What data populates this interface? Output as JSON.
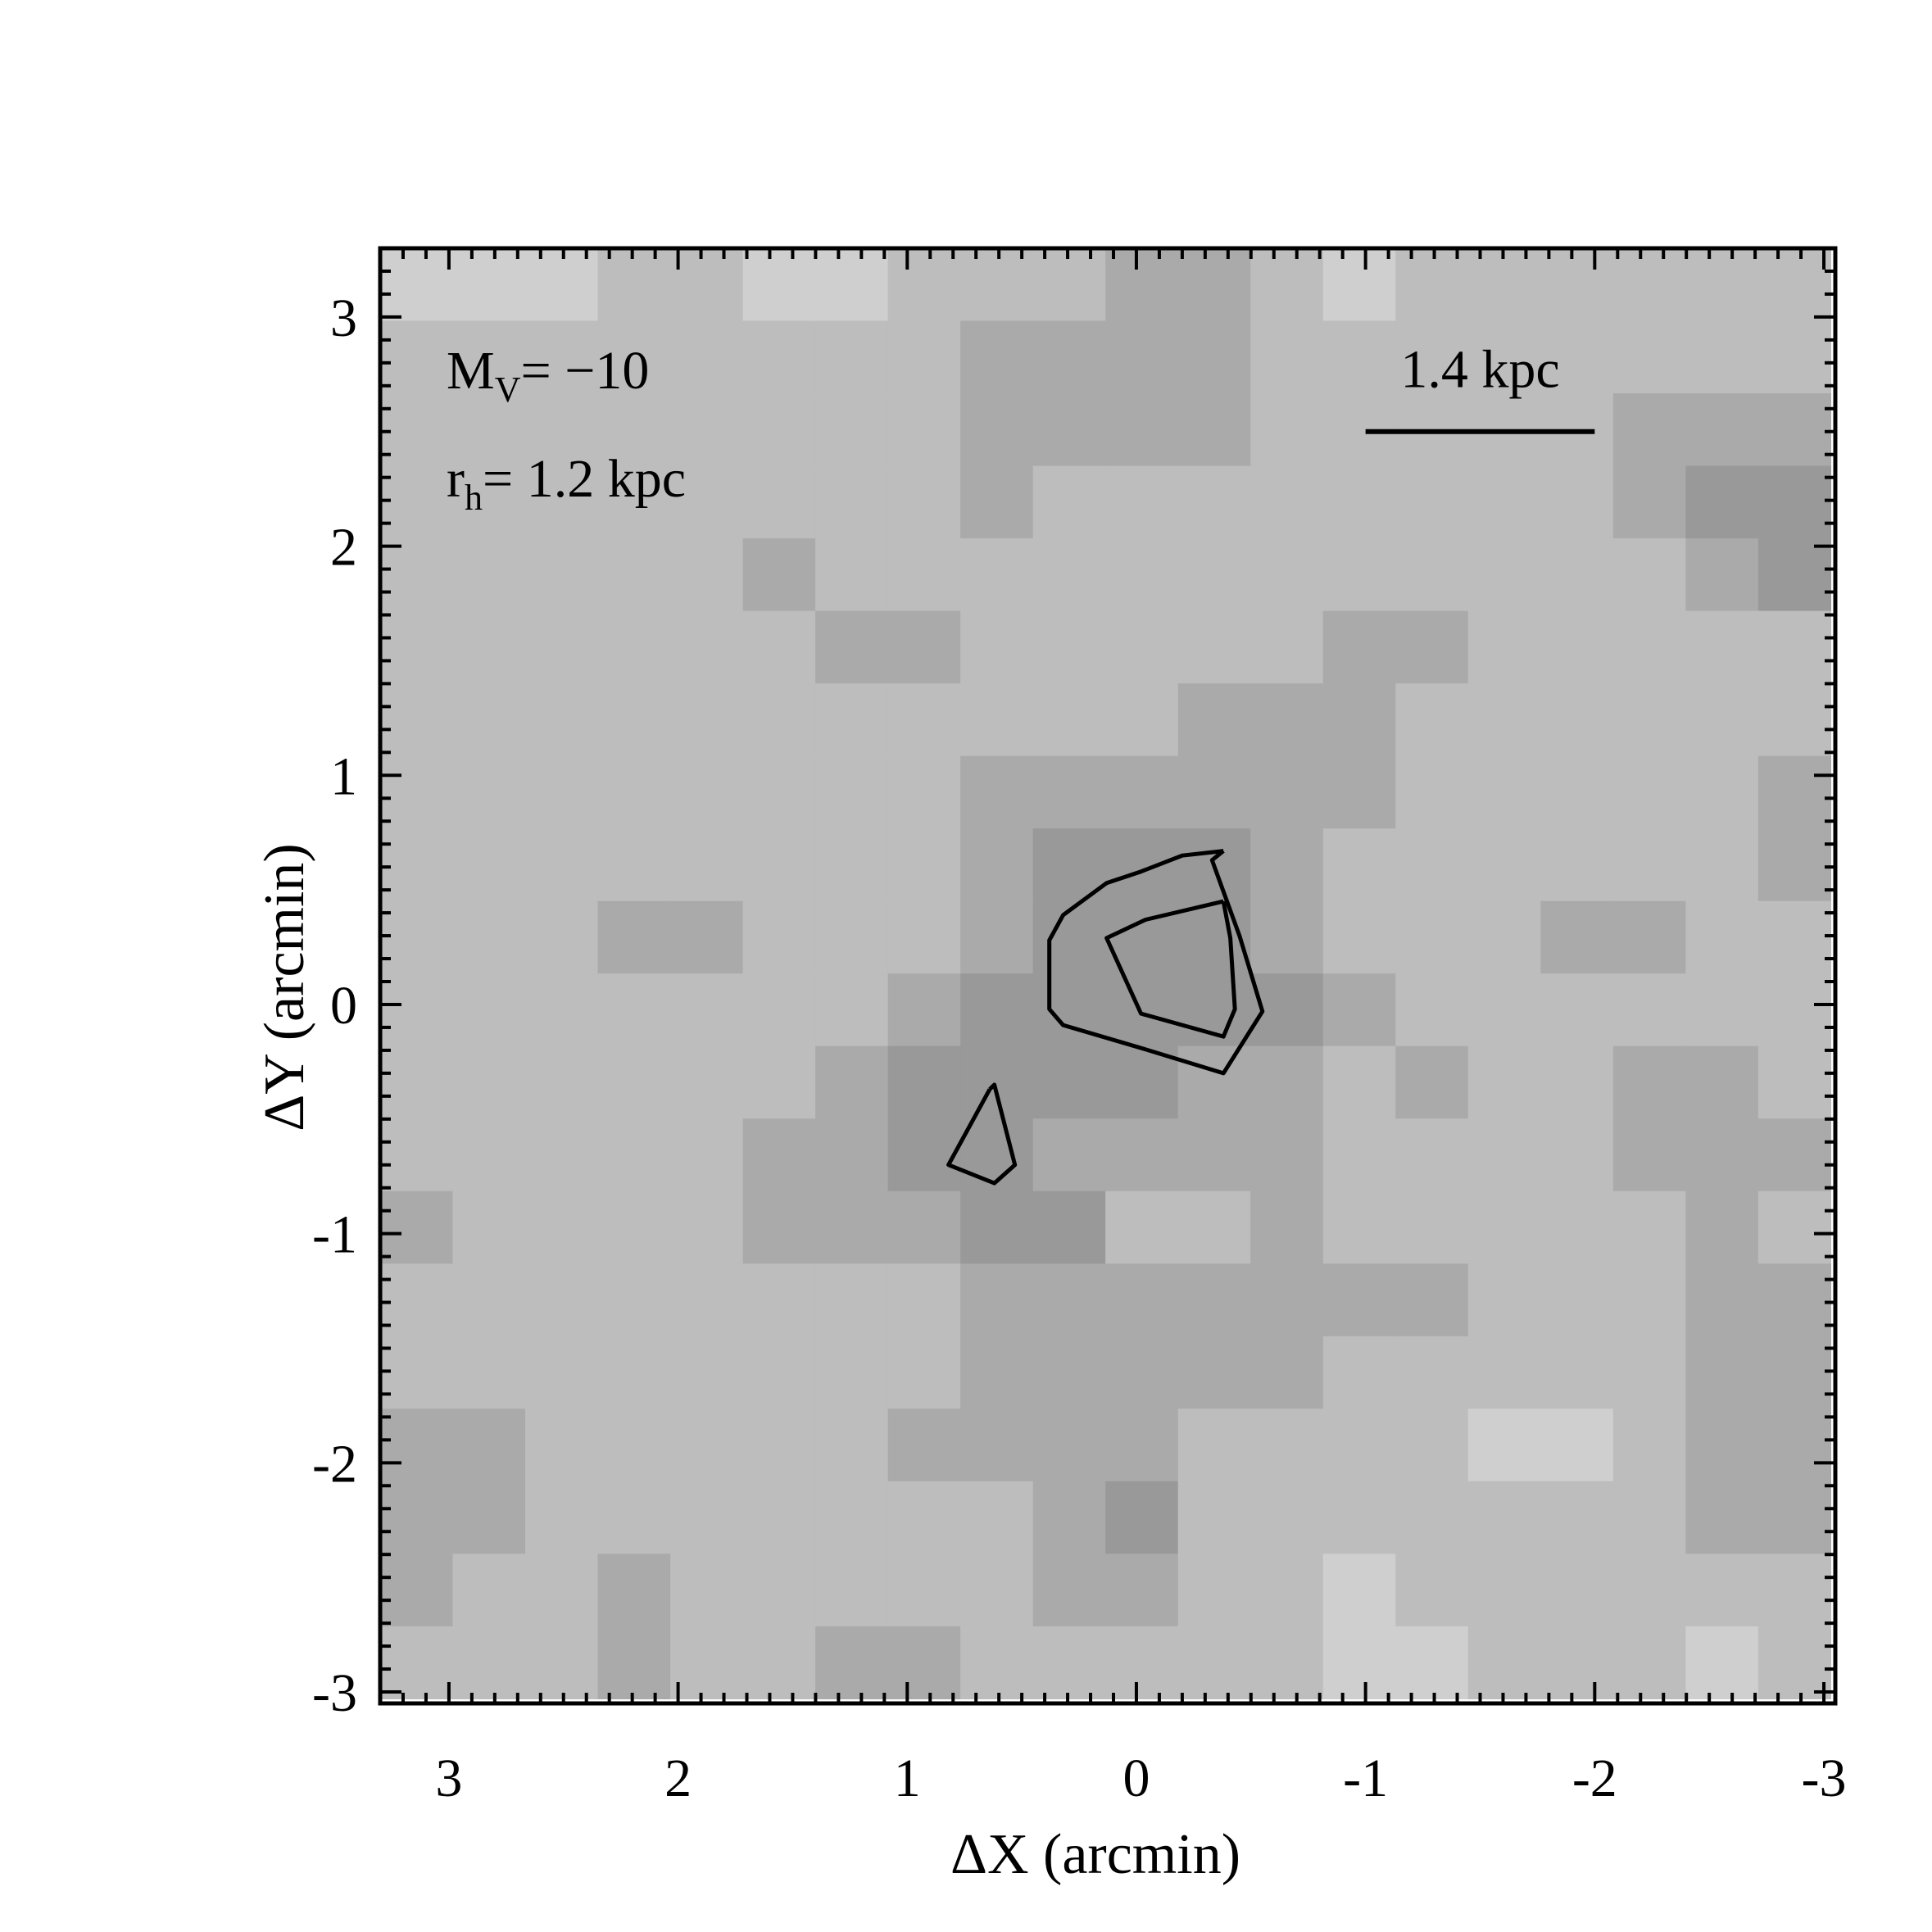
{
  "chart_data": {
    "type": "heatmap",
    "title": "",
    "xlabel": "ΔX (arcmin)",
    "ylabel": "ΔY (arcmin)",
    "xlim": [
      3.3,
      -3.05
    ],
    "ylim": [
      -3.05,
      3.3
    ],
    "x_ticks": [
      "3",
      "2",
      "1",
      "0",
      "-1",
      "-2",
      "-3"
    ],
    "x_tick_values": [
      3,
      2,
      1,
      0,
      -1,
      -2,
      -3
    ],
    "y_ticks": [
      "3",
      "2",
      "1",
      "0",
      "-1",
      "-2",
      "-3"
    ],
    "y_tick_values": [
      3,
      2,
      1,
      0,
      -1,
      -2,
      -3
    ],
    "grid": false,
    "colormap": "grayscale",
    "cells": {
      "x0": 3.3,
      "y0": 3.3,
      "dx": -0.3165,
      "dy": -0.3165,
      "levels_legend": {
        "0": "#cfcfcf",
        "1": "#bdbdbd",
        "2": "#aaaaaa",
        "3": "#999999"
      },
      "grid": [
        [
          0,
          0,
          0,
          1,
          1,
          0,
          0,
          1,
          1,
          1,
          2,
          2,
          1,
          0,
          1,
          1,
          1,
          1,
          1,
          1
        ],
        [
          1,
          1,
          1,
          1,
          1,
          1,
          1,
          1,
          2,
          2,
          2,
          2,
          1,
          1,
          1,
          1,
          1,
          1,
          1,
          1
        ],
        [
          1,
          1,
          1,
          1,
          1,
          1,
          1,
          1,
          2,
          2,
          2,
          2,
          1,
          1,
          1,
          1,
          1,
          2,
          2,
          2
        ],
        [
          1,
          1,
          1,
          1,
          1,
          1,
          1,
          1,
          2,
          1,
          1,
          1,
          1,
          1,
          1,
          1,
          1,
          2,
          3,
          3
        ],
        [
          1,
          1,
          1,
          1,
          1,
          2,
          1,
          1,
          1,
          1,
          1,
          1,
          1,
          1,
          1,
          1,
          1,
          1,
          2,
          3
        ],
        [
          1,
          1,
          1,
          1,
          1,
          1,
          2,
          2,
          1,
          1,
          1,
          1,
          1,
          2,
          2,
          1,
          1,
          1,
          1,
          1
        ],
        [
          1,
          1,
          1,
          1,
          1,
          1,
          1,
          1,
          1,
          1,
          1,
          2,
          2,
          2,
          1,
          1,
          1,
          1,
          1,
          1
        ],
        [
          1,
          1,
          1,
          1,
          1,
          1,
          1,
          1,
          2,
          2,
          2,
          2,
          2,
          2,
          1,
          1,
          1,
          1,
          1,
          2
        ],
        [
          1,
          1,
          1,
          1,
          1,
          1,
          1,
          1,
          2,
          3,
          3,
          3,
          2,
          1,
          1,
          1,
          1,
          1,
          1,
          2
        ],
        [
          1,
          1,
          1,
          2,
          2,
          1,
          1,
          1,
          2,
          3,
          3,
          3,
          2,
          1,
          1,
          1,
          2,
          2,
          1,
          1
        ],
        [
          1,
          1,
          1,
          1,
          1,
          1,
          1,
          2,
          3,
          3,
          3,
          3,
          3,
          2,
          1,
          1,
          1,
          1,
          1,
          1
        ],
        [
          1,
          1,
          1,
          1,
          1,
          1,
          2,
          3,
          3,
          3,
          3,
          2,
          2,
          1,
          2,
          1,
          1,
          2,
          2,
          1
        ],
        [
          1,
          1,
          1,
          1,
          1,
          2,
          2,
          3,
          3,
          2,
          2,
          2,
          2,
          1,
          1,
          1,
          1,
          2,
          2,
          2
        ],
        [
          2,
          1,
          1,
          1,
          1,
          2,
          2,
          2,
          3,
          3,
          1,
          1,
          2,
          1,
          1,
          1,
          1,
          1,
          2,
          1
        ],
        [
          1,
          1,
          1,
          1,
          1,
          1,
          1,
          1,
          2,
          2,
          2,
          2,
          2,
          2,
          2,
          1,
          1,
          1,
          2,
          2
        ],
        [
          1,
          1,
          1,
          1,
          1,
          1,
          1,
          1,
          2,
          2,
          2,
          2,
          2,
          1,
          1,
          1,
          1,
          1,
          2,
          2
        ],
        [
          2,
          2,
          1,
          1,
          1,
          1,
          1,
          2,
          2,
          2,
          2,
          1,
          1,
          1,
          1,
          0,
          0,
          1,
          2,
          2
        ],
        [
          2,
          2,
          1,
          1,
          1,
          1,
          1,
          1,
          1,
          2,
          3,
          1,
          1,
          1,
          1,
          1,
          1,
          1,
          2,
          2
        ],
        [
          2,
          1,
          1,
          2,
          1,
          1,
          1,
          1,
          1,
          2,
          2,
          1,
          1,
          0,
          1,
          1,
          1,
          1,
          1,
          1
        ],
        [
          1,
          1,
          1,
          2,
          1,
          1,
          2,
          2,
          1,
          1,
          1,
          1,
          1,
          0,
          0,
          1,
          1,
          1,
          0,
          1
        ]
      ]
    },
    "contours": [
      {
        "level": "outer",
        "points": [
          [
            -0.38,
            0.67
          ],
          [
            -0.33,
            0.63
          ],
          [
            -0.45,
            0.3
          ],
          [
            -0.55,
            -0.03
          ],
          [
            -0.38,
            -0.3
          ],
          [
            -0.02,
            -0.19
          ],
          [
            0.32,
            -0.09
          ],
          [
            0.38,
            -0.02
          ],
          [
            0.38,
            0.28
          ],
          [
            0.32,
            0.39
          ],
          [
            0.13,
            0.53
          ],
          [
            -0.02,
            0.58
          ],
          [
            -0.2,
            0.65
          ],
          [
            -0.38,
            0.67
          ]
        ]
      },
      {
        "level": "inner",
        "points": [
          [
            -0.38,
            0.45
          ],
          [
            -0.41,
            0.29
          ],
          [
            -0.43,
            -0.02
          ],
          [
            -0.38,
            -0.14
          ],
          [
            -0.02,
            -0.04
          ],
          [
            0.13,
            0.29
          ],
          [
            -0.04,
            0.37
          ],
          [
            -0.38,
            0.45
          ]
        ]
      },
      {
        "level": "outer",
        "points": [
          [
            0.64,
            -0.37
          ],
          [
            0.62,
            -0.35
          ],
          [
            0.53,
            -0.7
          ],
          [
            0.62,
            -0.78
          ],
          [
            0.82,
            -0.7
          ],
          [
            0.64,
            -0.37
          ]
        ]
      }
    ],
    "annotations": {
      "mv_main": "M",
      "mv_sub": "V",
      "mv_rest": "= −10",
      "rh_main": "r",
      "rh_sub": "h",
      "rh_rest": "= 1.2 kpc",
      "scalebar_label": "1.4 kpc",
      "scalebar_from_x": -1.0,
      "scalebar_to_x": -2.0,
      "scalebar_y": 2.5
    }
  }
}
